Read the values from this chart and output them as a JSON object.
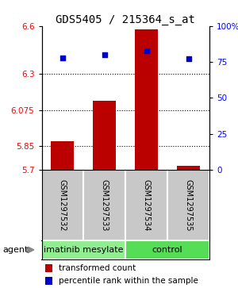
{
  "title": "GDS5405 / 215364_s_at",
  "samples": [
    "GSM1297532",
    "GSM1297533",
    "GSM1297534",
    "GSM1297535"
  ],
  "bar_values": [
    5.88,
    6.13,
    6.58,
    5.725
  ],
  "percentile_values": [
    78,
    80,
    83,
    77
  ],
  "ylim_left": [
    5.7,
    6.6
  ],
  "ylim_right": [
    0,
    100
  ],
  "yticks_left": [
    5.7,
    5.85,
    6.075,
    6.3,
    6.6
  ],
  "yticks_right": [
    0,
    25,
    50,
    75,
    100
  ],
  "ytick_labels_left": [
    "5.7",
    "5.85",
    "6.075",
    "6.3",
    "6.6"
  ],
  "ytick_labels_right": [
    "0",
    "25",
    "50",
    "75",
    "100%"
  ],
  "hlines": [
    5.85,
    6.075,
    6.3
  ],
  "bar_color": "#bb0000",
  "dot_color": "#0000cc",
  "groups": [
    {
      "label": "imatinib mesylate",
      "indices": [
        0,
        1
      ],
      "color": "#90ee90"
    },
    {
      "label": "control",
      "indices": [
        2,
        3
      ],
      "color": "#55dd55"
    }
  ],
  "agent_label": "agent",
  "legend_bar_label": "transformed count",
  "legend_dot_label": "percentile rank within the sample",
  "bar_width": 0.55,
  "sample_area_color": "#c8c8c8",
  "title_fontsize": 10,
  "tick_fontsize": 7.5,
  "sample_fontsize": 7,
  "group_fontsize": 8,
  "legend_fontsize": 7.5
}
